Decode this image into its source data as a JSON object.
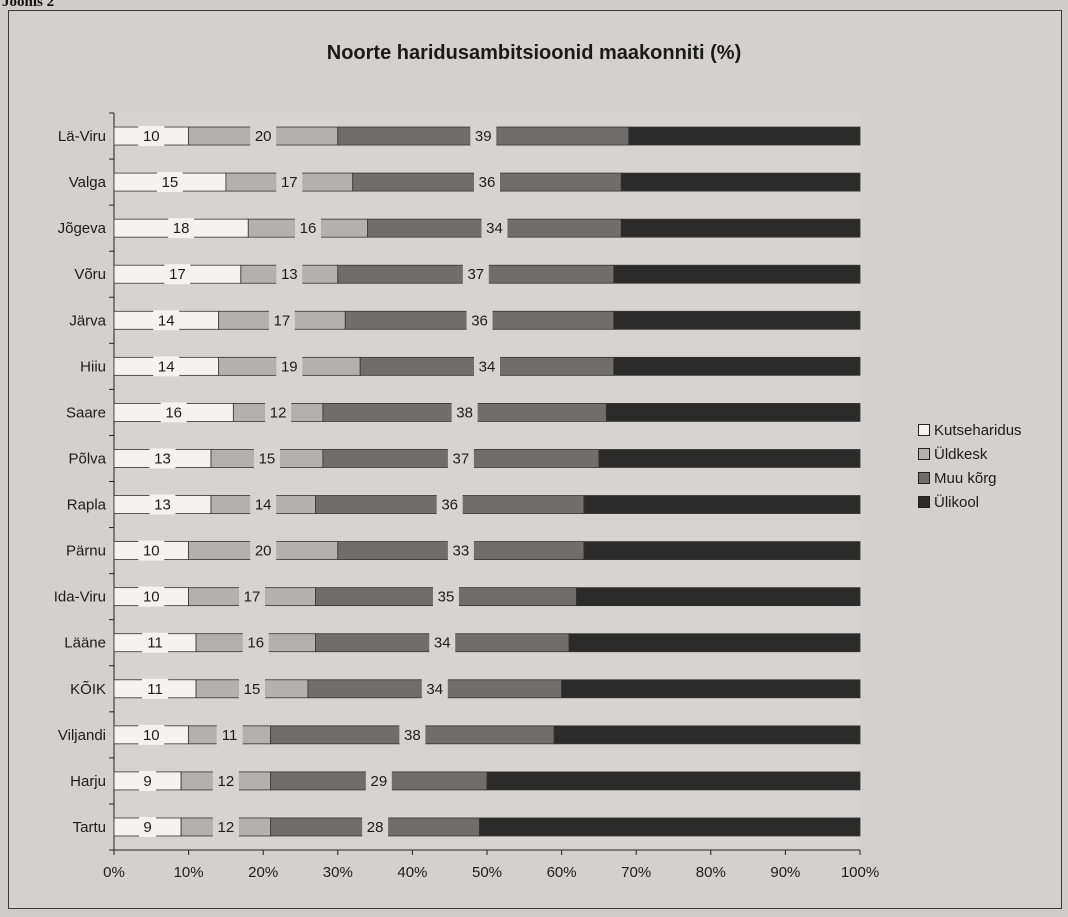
{
  "caption": "Joonis 2",
  "chart_data": {
    "type": "bar",
    "orientation": "horizontal",
    "stacked": true,
    "percent_stacked": true,
    "title": "Noorte haridusambitsioonid maakonniti (%)",
    "xlabel": "",
    "ylabel": "",
    "xlim": [
      0,
      100
    ],
    "x_ticks": [
      "0%",
      "10%",
      "20%",
      "30%",
      "40%",
      "50%",
      "60%",
      "70%",
      "80%",
      "90%",
      "100%"
    ],
    "categories": [
      "Lä-Viru",
      "Valga",
      "Jõgeva",
      "Võru",
      "Järva",
      "Hiiu",
      "Saare",
      "Põlva",
      "Rapla",
      "Pärnu",
      "Ida-Viru",
      "Lääne",
      "KÕIK",
      "Viljandi",
      "Harju",
      "Tartu"
    ],
    "series": [
      {
        "name": "Kutseharidus",
        "color": "#f4f3f0",
        "values": [
          10,
          15,
          18,
          17,
          14,
          14,
          16,
          13,
          13,
          10,
          10,
          11,
          11,
          10,
          9,
          9
        ]
      },
      {
        "name": "Üldkesk",
        "color": "#b3b1ae",
        "values": [
          20,
          17,
          16,
          13,
          17,
          19,
          12,
          15,
          14,
          20,
          17,
          16,
          15,
          11,
          12,
          12
        ]
      },
      {
        "name": "Muu kõrg",
        "color": "#6f6e6c",
        "values": [
          39,
          36,
          34,
          37,
          36,
          34,
          38,
          37,
          36,
          33,
          35,
          34,
          34,
          38,
          29,
          28
        ]
      },
      {
        "name": "Ülikool",
        "color": "#2b2b2b",
        "values": [
          31,
          32,
          32,
          33,
          33,
          33,
          34,
          35,
          37,
          37,
          38,
          39,
          40,
          41,
          50,
          51
        ]
      }
    ],
    "data_labels_shown_for": [
      "Kutseharidus",
      "Üldkesk",
      "Muu kõrg"
    ],
    "legend": {
      "position": "right",
      "entries": [
        "Kutseharidus",
        "Üldkesk",
        "Muu kõrg",
        "Ülikool"
      ]
    },
    "grid": false
  }
}
